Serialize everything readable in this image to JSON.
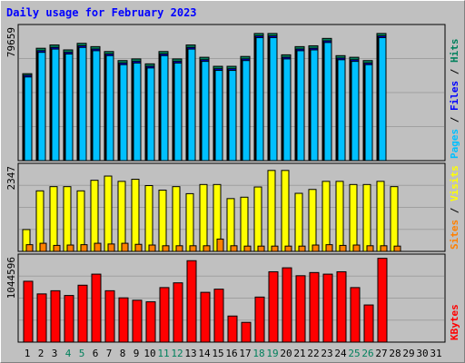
{
  "title": "Daily usage for February 2023",
  "colors": {
    "background": "#C0C0C0",
    "title": "#0000FF",
    "hits": "#00805C",
    "files": "#0000FF",
    "pages": "#00C0FF",
    "visits": "#FFFF00",
    "sites": "#FF8000",
    "kbytes": "#FF0000",
    "weekend_label": "#00805C"
  },
  "chart_data": [
    {
      "type": "bar",
      "panel": "top",
      "max_label": "79659",
      "ylim": [
        0,
        79659
      ],
      "legend": [
        "Pages",
        "Files",
        "Hits"
      ],
      "legend_separator": "/",
      "categories": [
        "1",
        "2",
        "3",
        "4",
        "5",
        "6",
        "7",
        "8",
        "9",
        "10",
        "11",
        "12",
        "13",
        "14",
        "15",
        "16",
        "17",
        "18",
        "19",
        "20",
        "21",
        "22",
        "23",
        "24",
        "25",
        "26",
        "27",
        "28",
        "29",
        "30",
        "31"
      ],
      "series": [
        {
          "name": "Hits",
          "values": [
            53000,
            68500,
            70500,
            67500,
            71500,
            69500,
            66500,
            61000,
            62000,
            59000,
            66500,
            62000,
            70500,
            63000,
            57500,
            57500,
            63500,
            77500,
            77500,
            64500,
            69500,
            70000,
            74500,
            64000,
            63000,
            61000,
            77500,
            0,
            0,
            0,
            0
          ]
        },
        {
          "name": "Files",
          "values": [
            52000,
            67000,
            69000,
            66000,
            70000,
            68000,
            65000,
            59500,
            60500,
            57500,
            65000,
            60500,
            69000,
            61500,
            56000,
            56000,
            62000,
            76000,
            76000,
            63000,
            68000,
            68500,
            73000,
            62500,
            61500,
            59500,
            76000,
            0,
            0,
            0,
            0
          ]
        },
        {
          "name": "Pages",
          "values": [
            51000,
            66000,
            68000,
            65000,
            69000,
            67000,
            64000,
            58500,
            59500,
            56500,
            64000,
            59500,
            68000,
            60500,
            55000,
            55000,
            61000,
            75000,
            75000,
            62000,
            67000,
            67500,
            72000,
            61500,
            60500,
            58500,
            75000,
            0,
            0,
            0,
            0
          ]
        }
      ]
    },
    {
      "type": "bar",
      "panel": "middle",
      "max_label": "2347",
      "ylim": [
        0,
        2347
      ],
      "legend": [
        "Sites",
        "Visits"
      ],
      "legend_separator": "/",
      "categories": [
        "1",
        "2",
        "3",
        "4",
        "5",
        "6",
        "7",
        "8",
        "9",
        "10",
        "11",
        "12",
        "13",
        "14",
        "15",
        "16",
        "17",
        "18",
        "19",
        "20",
        "21",
        "22",
        "23",
        "24",
        "25",
        "26",
        "27",
        "28",
        "29",
        "30",
        "31"
      ],
      "series": [
        {
          "name": "Visits",
          "values": [
            620,
            1720,
            1840,
            1840,
            1720,
            2020,
            2140,
            1990,
            2050,
            1870,
            1740,
            1840,
            1640,
            1900,
            1900,
            1500,
            1540,
            1830,
            2300,
            2300,
            1650,
            1760,
            1990,
            1990,
            1900,
            1900,
            1990,
            1840,
            0,
            0,
            0
          ]
        },
        {
          "name": "Sites",
          "values": [
            190,
            230,
            170,
            180,
            190,
            230,
            210,
            230,
            200,
            180,
            160,
            160,
            160,
            160,
            350,
            160,
            150,
            150,
            150,
            150,
            150,
            180,
            190,
            170,
            180,
            160,
            160,
            150,
            0,
            0,
            0
          ]
        }
      ]
    },
    {
      "type": "bar",
      "panel": "bottom",
      "max_label": "1044596",
      "ylim": [
        0,
        1044596
      ],
      "legend": [
        "KBytes"
      ],
      "categories": [
        "1",
        "2",
        "3",
        "4",
        "5",
        "6",
        "7",
        "8",
        "9",
        "10",
        "11",
        "12",
        "13",
        "14",
        "15",
        "16",
        "17",
        "18",
        "19",
        "20",
        "21",
        "22",
        "23",
        "24",
        "25",
        "26",
        "27",
        "28",
        "29",
        "30",
        "31"
      ],
      "series": [
        {
          "name": "KBytes",
          "values": [
            770000,
            610000,
            650000,
            590000,
            720000,
            860000,
            650000,
            560000,
            530000,
            510000,
            690000,
            750000,
            1030000,
            630000,
            670000,
            330000,
            250000,
            570000,
            890000,
            940000,
            840000,
            880000,
            860000,
            890000,
            690000,
            470000,
            1060000,
            0,
            0,
            0,
            0
          ]
        }
      ]
    }
  ],
  "x_labels": {
    "days": [
      "1",
      "2",
      "3",
      "4",
      "5",
      "6",
      "7",
      "8",
      "9",
      "10",
      "11",
      "12",
      "13",
      "14",
      "15",
      "16",
      "17",
      "18",
      "19",
      "20",
      "21",
      "22",
      "23",
      "24",
      "25",
      "26",
      "27",
      "28",
      "29",
      "30",
      "31"
    ],
    "weekend_days": [
      4,
      5,
      11,
      12,
      18,
      19,
      25,
      26
    ]
  }
}
